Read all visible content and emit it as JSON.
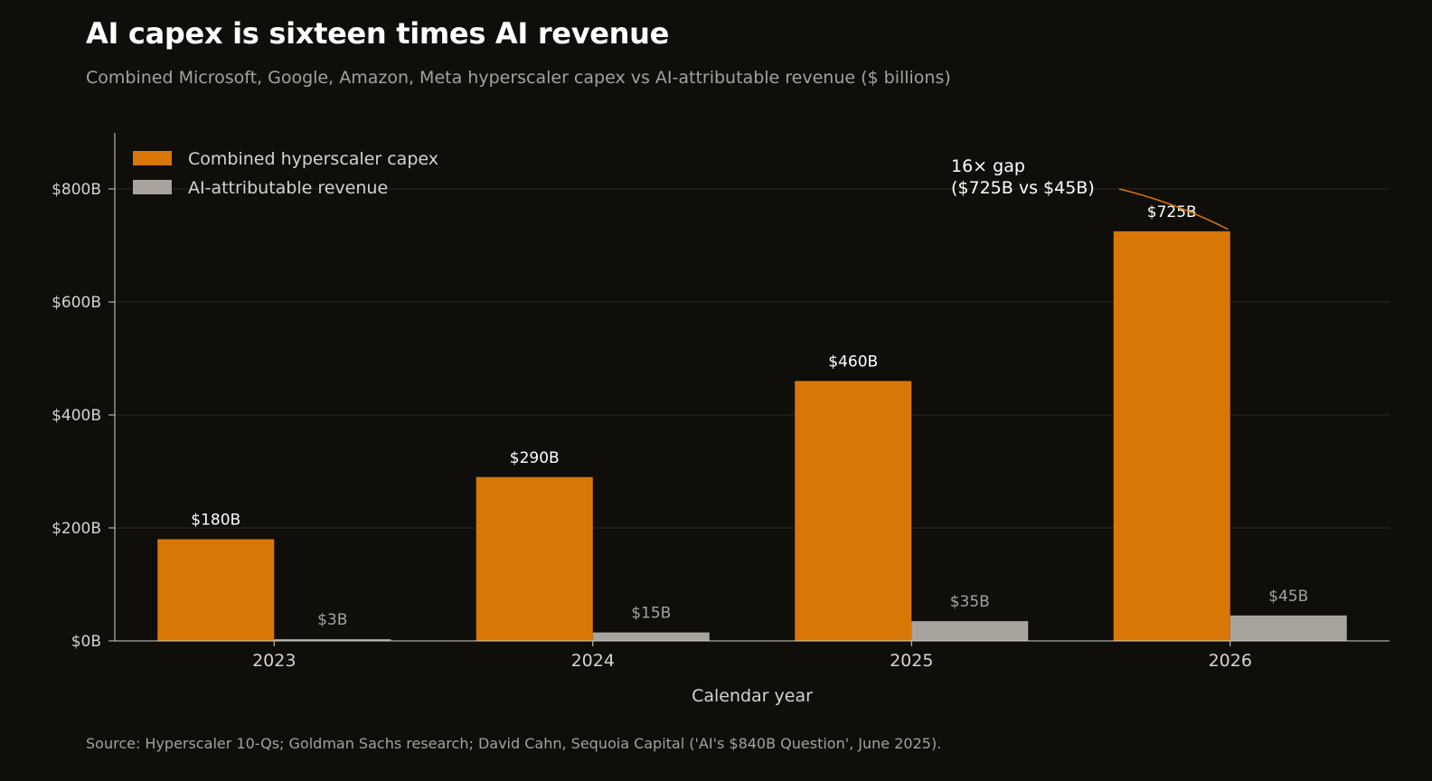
{
  "header": {
    "title": "AI capex is sixteen times AI revenue",
    "subtitle": "Combined Microsoft, Google, Amazon, Meta hyperscaler capex vs AI-attributable revenue ($ billions)"
  },
  "footer": {
    "source": "Source: Hyperscaler 10-Qs; Goldman Sachs research; David Cahn, Sequoia Capital ('AI's $840B Question', June 2025)."
  },
  "chart_data": {
    "type": "bar",
    "categories": [
      "2023",
      "2024",
      "2025",
      "2026"
    ],
    "series": [
      {
        "name": "Combined hyperscaler capex",
        "values": [
          180,
          290,
          460,
          725
        ],
        "labels": [
          "$180B",
          "$290B",
          "$460B",
          "$725B"
        ],
        "color": "#d97706"
      },
      {
        "name": "AI-attributable revenue",
        "values": [
          3,
          15,
          35,
          45
        ],
        "labels": [
          "$3B",
          "$15B",
          "$35B",
          "$45B"
        ],
        "color": "#a8a39d"
      }
    ],
    "xlabel": "Calendar year",
    "ylabel": "",
    "ylim": [
      0,
      900
    ],
    "yticks": [
      0,
      200,
      400,
      600,
      800
    ],
    "ytick_labels": [
      "$0B",
      "$200B",
      "$400B",
      "$600B",
      "$800B"
    ],
    "grid": true,
    "legend_position": "top-left",
    "annotation": {
      "lines": [
        "16× gap",
        "($725B  vs  $45B)"
      ],
      "target_category": "2026",
      "target_series": "Combined hyperscaler capex"
    }
  }
}
